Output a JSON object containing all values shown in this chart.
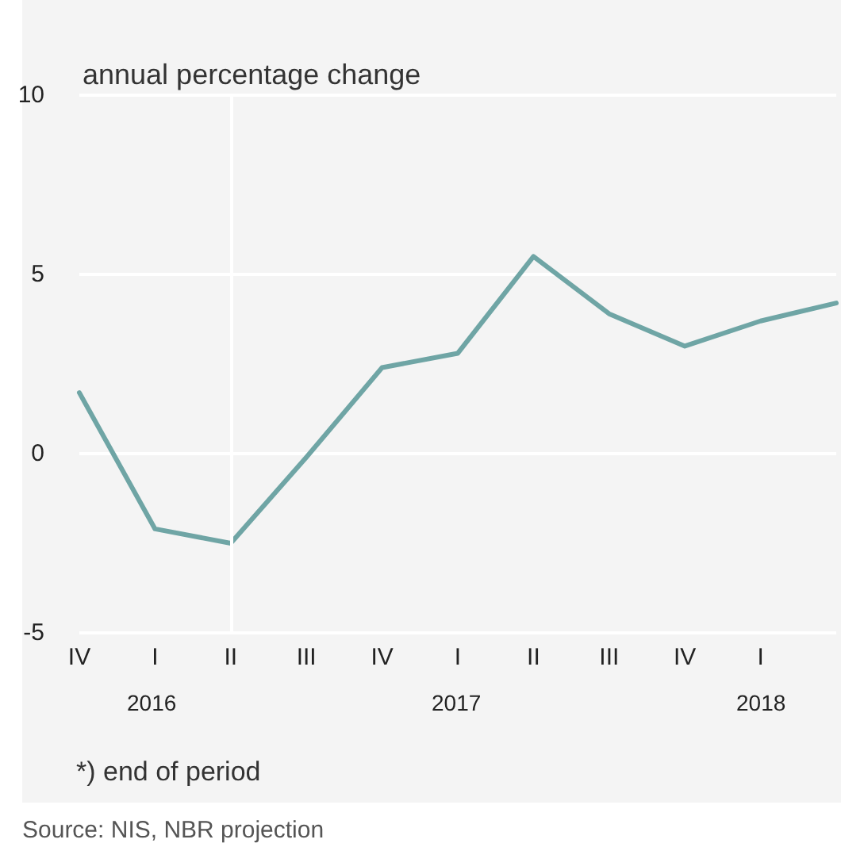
{
  "chart_data": {
    "type": "line",
    "ylabel": "annual percentage change",
    "categories": [
      "IV",
      "I",
      "II",
      "III",
      "IV",
      "I",
      "II",
      "III",
      "IV",
      "I",
      null
    ],
    "series": [
      {
        "color": "#6fa5a5",
        "values": [
          1.7,
          -2.1,
          -2.5,
          -0.1,
          2.4,
          2.8,
          5.5,
          3.9,
          3.0,
          3.7,
          4.2
        ]
      }
    ],
    "ylim": [
      -5,
      10
    ],
    "yticks": [
      -5,
      0,
      5,
      10
    ],
    "grid": "y",
    "marker": "none",
    "line_style": "solid",
    "ref_lines": [
      {
        "axis": "x",
        "value": "II",
        "color": "#ffffff"
      }
    ],
    "annotations": [
      "2016",
      "2017",
      "2018",
      "*) end of period",
      "Source: NIS, NBR projection"
    ]
  }
}
